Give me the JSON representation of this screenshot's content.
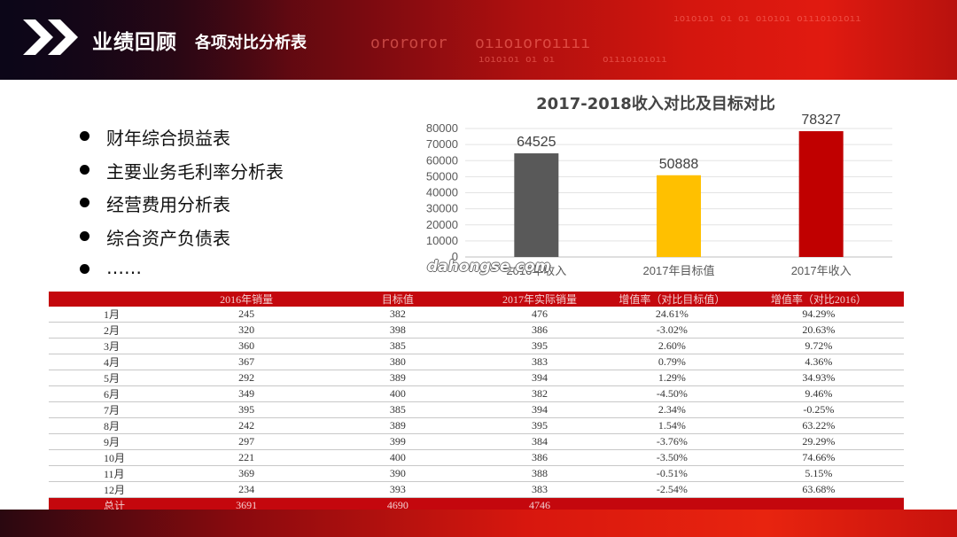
{
  "header": {
    "title": "业绩回顾",
    "subtitle": "各项对比分析表",
    "deco_text": [
      "orororor",
      "oııoıoroıııı",
      "ıoıoıoı oı oı",
      "oıııoıoıoıı",
      "ıoıoıoı oı oı   oıoıoı   oıııoıoıoıı"
    ]
  },
  "bullets": [
    "财年综合损益表",
    "主要业务毛利率分析表",
    "经营费用分析表",
    "综合资产负债表",
    "……"
  ],
  "chart_data": {
    "type": "bar",
    "title": "2017-2018收入对比及目标对比",
    "categories": [
      "2016年收入",
      "2017年目标值",
      "2017年收入"
    ],
    "values": [
      64525,
      50888,
      78327
    ],
    "colors": [
      "#595959",
      "#ffc000",
      "#c00000"
    ],
    "ylim": [
      0,
      80000
    ],
    "yticks": [
      0,
      10000,
      20000,
      30000,
      40000,
      50000,
      60000,
      70000,
      80000
    ],
    "grid": true
  },
  "watermark": "dahongse.com",
  "table": {
    "headers": [
      "",
      "2016年销量",
      "目标值",
      "2017年实际销量",
      "增值率（对比目标值）",
      "增值率（对比2016）"
    ],
    "rows": [
      [
        "1月",
        "245",
        "382",
        "476",
        "24.61%",
        "94.29%"
      ],
      [
        "2月",
        "320",
        "398",
        "386",
        "-3.02%",
        "20.63%"
      ],
      [
        "3月",
        "360",
        "385",
        "395",
        "2.60%",
        "9.72%"
      ],
      [
        "4月",
        "367",
        "380",
        "383",
        "0.79%",
        "4.36%"
      ],
      [
        "5月",
        "292",
        "389",
        "394",
        "1.29%",
        "34.93%"
      ],
      [
        "6月",
        "349",
        "400",
        "382",
        "-4.50%",
        "9.46%"
      ],
      [
        "7月",
        "395",
        "385",
        "394",
        "2.34%",
        "-0.25%"
      ],
      [
        "8月",
        "242",
        "389",
        "395",
        "1.54%",
        "63.22%"
      ],
      [
        "9月",
        "297",
        "399",
        "384",
        "-3.76%",
        "29.29%"
      ],
      [
        "10月",
        "221",
        "400",
        "386",
        "-3.50%",
        "74.66%"
      ],
      [
        "11月",
        "369",
        "390",
        "388",
        "-0.51%",
        "5.15%"
      ],
      [
        "12月",
        "234",
        "393",
        "383",
        "-2.54%",
        "63.68%"
      ]
    ],
    "total": [
      "总计",
      "3691",
      "4690",
      "4746",
      "",
      ""
    ]
  }
}
